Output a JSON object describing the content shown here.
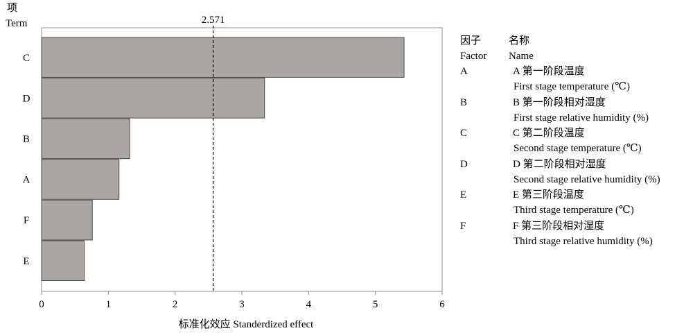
{
  "chart_data": {
    "type": "bar",
    "orientation": "horizontal",
    "y_axis_title_line1": "项",
    "y_axis_title_line2": "Term",
    "xlabel": "标准化效应 Standerdized effect",
    "categories": [
      "C",
      "D",
      "B",
      "A",
      "F",
      "E"
    ],
    "values": [
      5.43,
      3.34,
      1.32,
      1.16,
      0.76,
      0.64
    ],
    "xlim": [
      0,
      6.0
    ],
    "xticks": [
      "0",
      "1",
      "2",
      "3",
      "4",
      "5",
      "6"
    ],
    "reference_line": {
      "value": 2.571,
      "label": "2.571"
    },
    "bar_color": "#a9a6a3",
    "grid": false
  },
  "legend": {
    "header_factor_cn": "因子",
    "header_name_cn": "名称",
    "header_factor_en": "Factor",
    "header_name_en": "Name",
    "items": [
      {
        "factor": "A",
        "name_cn": "A 第一阶段温度",
        "name_en": "First stage temperature (℃)"
      },
      {
        "factor": "B",
        "name_cn": "B 第一阶段相对湿度",
        "name_en": "First stage relative humidity (%)"
      },
      {
        "factor": "C",
        "name_cn": "C 第二阶段温度",
        "name_en": "Second stage temperature (℃)"
      },
      {
        "factor": "D",
        "name_cn": "D 第二阶段相对湿度",
        "name_en": "Second stage relative humidity (%)"
      },
      {
        "factor": "E",
        "name_cn": "E 第三阶段温度",
        "name_en": "Third stage temperature (℃)"
      },
      {
        "factor": "F",
        "name_cn": "F 第三阶段相对湿度",
        "name_en": "Third stage relative humidity (%)"
      }
    ]
  }
}
